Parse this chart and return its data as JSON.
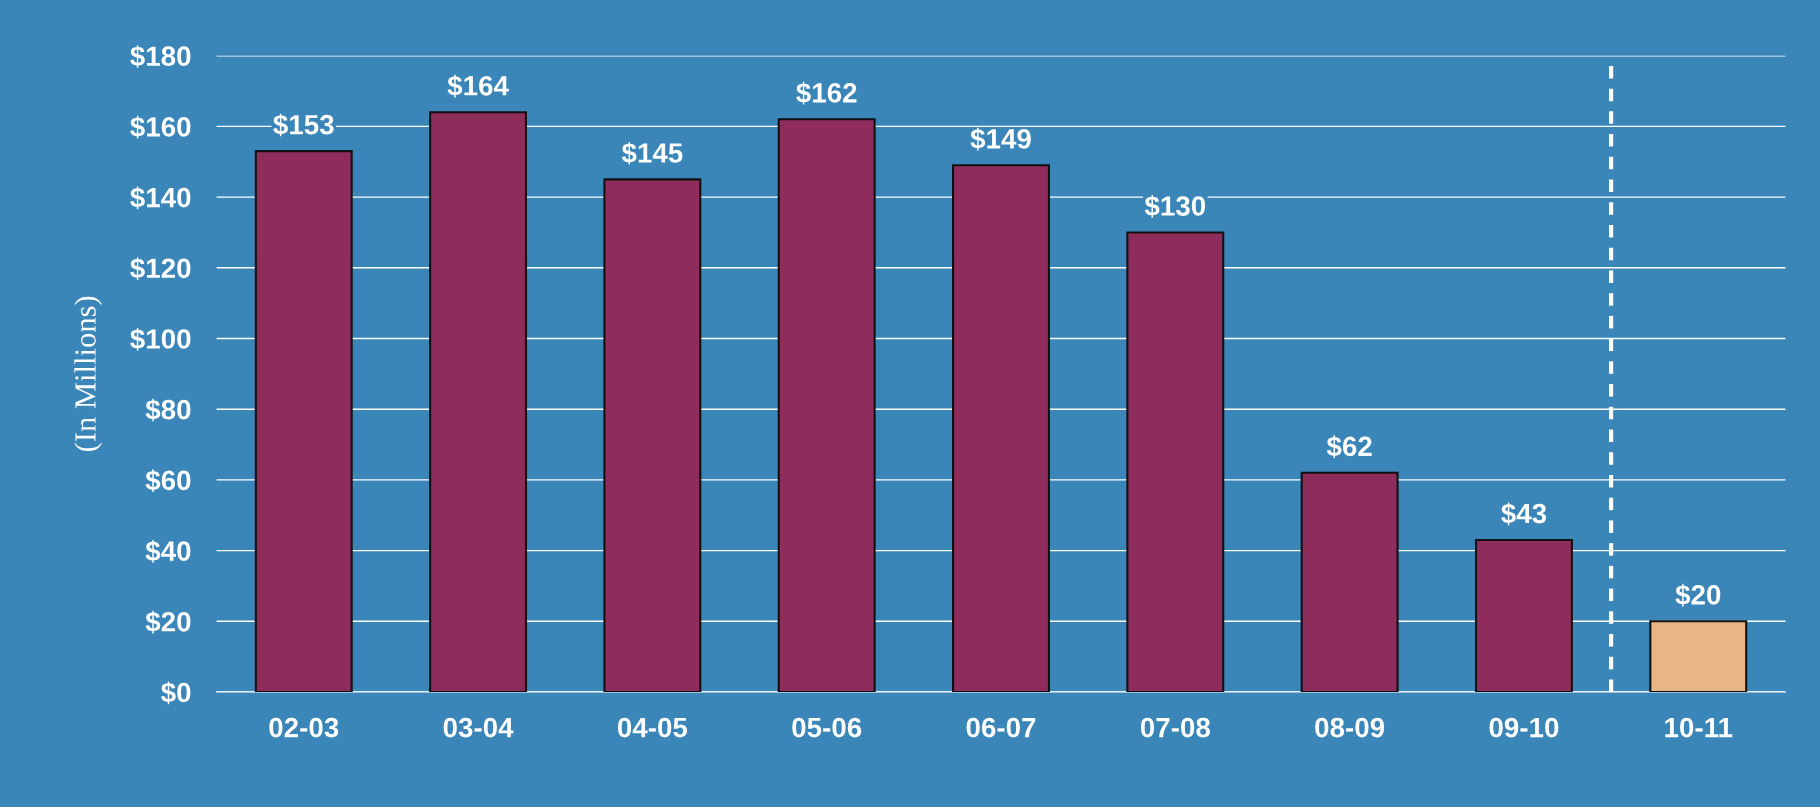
{
  "chart_data": {
    "type": "bar",
    "ylabel": "(In Millions)",
    "categories": [
      "02-03",
      "03-04",
      "04-05",
      "05-06",
      "06-07",
      "07-08",
      "08-09",
      "09-10",
      "10-11"
    ],
    "values": [
      153,
      164,
      145,
      162,
      149,
      130,
      62,
      43,
      20
    ],
    "value_labels": [
      "$153",
      "$164",
      "$145",
      "$162",
      "$149",
      "$130",
      "$62",
      "$43",
      "$20"
    ],
    "colors": [
      "#8e2c5c",
      "#8e2c5c",
      "#8e2c5c",
      "#8e2c5c",
      "#8e2c5c",
      "#8e2c5c",
      "#8e2c5c",
      "#8e2c5c",
      "#e8b584"
    ],
    "ylim": [
      0,
      180
    ],
    "yticks": [
      {
        "value": 0,
        "label": "$0"
      },
      {
        "value": 20,
        "label": "$20"
      },
      {
        "value": 40,
        "label": "$40"
      },
      {
        "value": 60,
        "label": "$60"
      },
      {
        "value": 80,
        "label": "$80"
      },
      {
        "value": 100,
        "label": "$100"
      },
      {
        "value": 120,
        "label": "$120"
      },
      {
        "value": 140,
        "label": "$140"
      },
      {
        "value": 160,
        "label": "$160"
      },
      {
        "value": 180,
        "label": "$180"
      }
    ],
    "grid": "y"
  }
}
